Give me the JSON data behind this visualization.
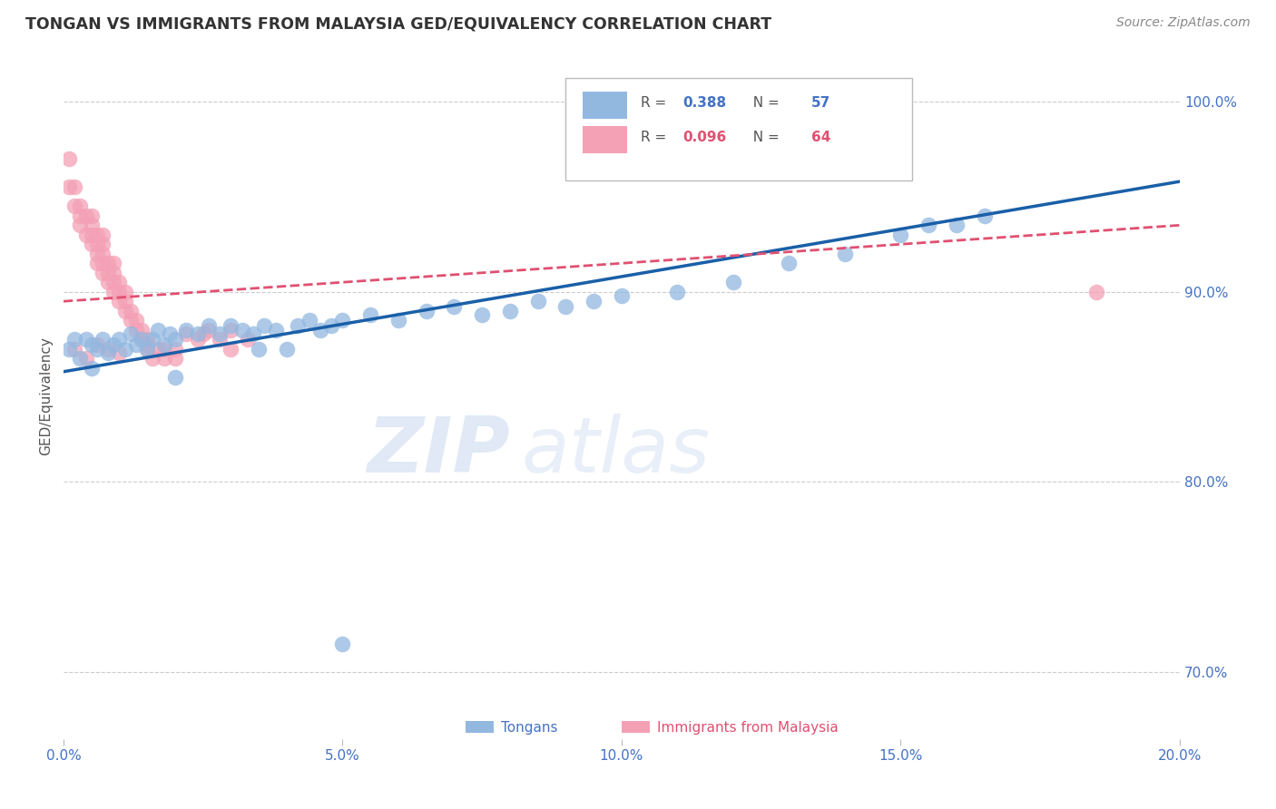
{
  "title": "TONGAN VS IMMIGRANTS FROM MALAYSIA GED/EQUIVALENCY CORRELATION CHART",
  "source": "Source: ZipAtlas.com",
  "ylabel": "GED/Equivalency",
  "xlim": [
    0.0,
    0.2
  ],
  "ylim": [
    0.665,
    1.025
  ],
  "blue_color": "#92b8e0",
  "pink_color": "#f4a0b5",
  "blue_line_color": "#1a5fa8",
  "pink_line_color": "#e05070",
  "watermark_zip": "ZIP",
  "watermark_atlas": "atlas",
  "tongans_x": [
    0.001,
    0.002,
    0.003,
    0.004,
    0.005,
    0.005,
    0.006,
    0.007,
    0.008,
    0.009,
    0.01,
    0.011,
    0.012,
    0.013,
    0.014,
    0.015,
    0.016,
    0.017,
    0.018,
    0.019,
    0.02,
    0.022,
    0.024,
    0.026,
    0.028,
    0.03,
    0.032,
    0.034,
    0.036,
    0.038,
    0.04,
    0.042,
    0.044,
    0.046,
    0.048,
    0.05,
    0.055,
    0.06,
    0.065,
    0.07,
    0.075,
    0.08,
    0.085,
    0.09,
    0.095,
    0.1,
    0.11,
    0.12,
    0.13,
    0.14,
    0.15,
    0.155,
    0.16,
    0.165,
    0.02,
    0.035,
    0.05
  ],
  "tongans_y": [
    0.87,
    0.875,
    0.865,
    0.875,
    0.872,
    0.86,
    0.87,
    0.875,
    0.868,
    0.872,
    0.875,
    0.87,
    0.878,
    0.872,
    0.875,
    0.87,
    0.875,
    0.88,
    0.872,
    0.878,
    0.875,
    0.88,
    0.878,
    0.882,
    0.878,
    0.882,
    0.88,
    0.878,
    0.882,
    0.88,
    0.87,
    0.882,
    0.885,
    0.88,
    0.882,
    0.885,
    0.888,
    0.885,
    0.89,
    0.892,
    0.888,
    0.89,
    0.895,
    0.892,
    0.895,
    0.898,
    0.9,
    0.905,
    0.915,
    0.92,
    0.93,
    0.935,
    0.935,
    0.94,
    0.855,
    0.87,
    0.715
  ],
  "malaysia_x": [
    0.001,
    0.001,
    0.002,
    0.002,
    0.003,
    0.003,
    0.003,
    0.004,
    0.004,
    0.005,
    0.005,
    0.005,
    0.005,
    0.006,
    0.006,
    0.006,
    0.006,
    0.007,
    0.007,
    0.007,
    0.007,
    0.007,
    0.008,
    0.008,
    0.008,
    0.009,
    0.009,
    0.009,
    0.009,
    0.01,
    0.01,
    0.01,
    0.011,
    0.011,
    0.011,
    0.012,
    0.012,
    0.013,
    0.013,
    0.014,
    0.014,
    0.015,
    0.015,
    0.016,
    0.017,
    0.018,
    0.02,
    0.022,
    0.024,
    0.026,
    0.028,
    0.03,
    0.033,
    0.03,
    0.025,
    0.02,
    0.018,
    0.015,
    0.01,
    0.008,
    0.006,
    0.004,
    0.002,
    0.185
  ],
  "malaysia_y": [
    0.955,
    0.97,
    0.945,
    0.955,
    0.935,
    0.94,
    0.945,
    0.93,
    0.94,
    0.925,
    0.93,
    0.935,
    0.94,
    0.915,
    0.92,
    0.925,
    0.93,
    0.91,
    0.915,
    0.92,
    0.925,
    0.93,
    0.905,
    0.91,
    0.915,
    0.9,
    0.905,
    0.91,
    0.915,
    0.895,
    0.9,
    0.905,
    0.89,
    0.895,
    0.9,
    0.885,
    0.89,
    0.88,
    0.885,
    0.875,
    0.88,
    0.87,
    0.875,
    0.865,
    0.87,
    0.865,
    0.87,
    0.878,
    0.875,
    0.88,
    0.875,
    0.88,
    0.875,
    0.87,
    0.878,
    0.865,
    0.87,
    0.872,
    0.868,
    0.87,
    0.872,
    0.865,
    0.87,
    0.9
  ],
  "blue_r": 0.388,
  "blue_n": 57,
  "pink_r": 0.096,
  "pink_n": 64,
  "blue_line_x0": 0.0,
  "blue_line_y0": 0.858,
  "blue_line_x1": 0.2,
  "blue_line_y1": 0.958,
  "pink_line_x0": 0.0,
  "pink_line_y0": 0.895,
  "pink_line_x1": 0.2,
  "pink_line_y1": 0.935
}
